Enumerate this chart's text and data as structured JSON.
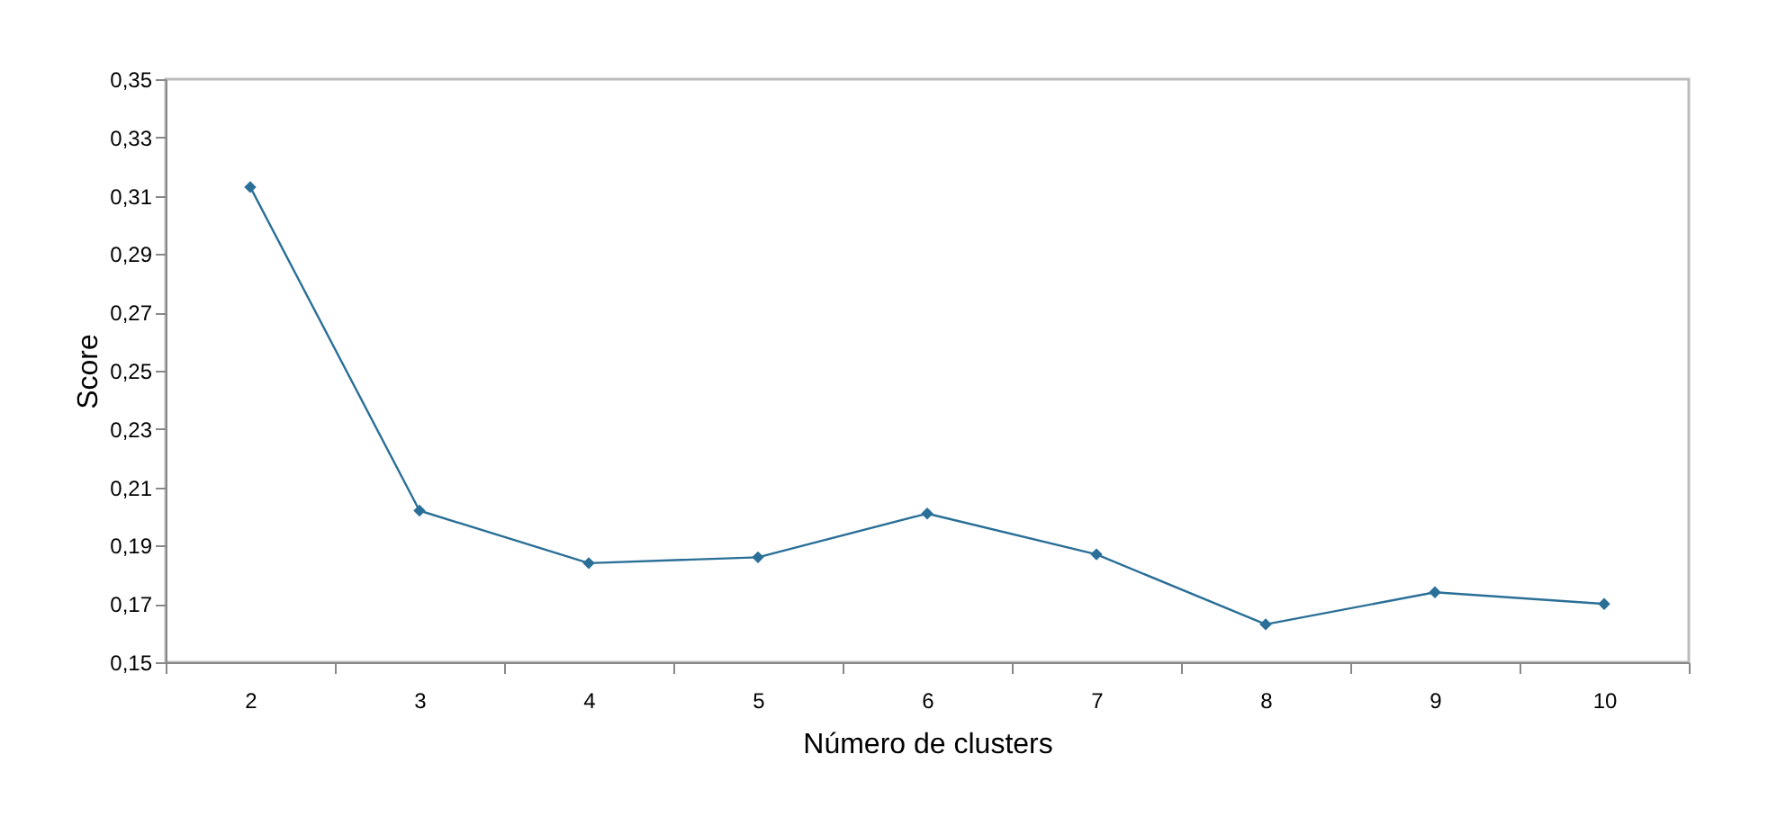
{
  "chart_data": {
    "type": "line",
    "xlabel": "Número de clusters",
    "ylabel": "Score",
    "categories": [
      "2",
      "3",
      "4",
      "5",
      "6",
      "7",
      "8",
      "9",
      "10"
    ],
    "series": [
      {
        "color": "#2a6f97",
        "values": [
          0.313,
          0.202,
          0.184,
          0.186,
          0.201,
          0.187,
          0.163,
          0.174,
          0.17
        ]
      }
    ],
    "ylim": [
      0.15,
      0.35
    ],
    "yticks": [
      {
        "value": 0.15,
        "label": "0,15"
      },
      {
        "value": 0.17,
        "label": "0,17"
      },
      {
        "value": 0.19,
        "label": "0,19"
      },
      {
        "value": 0.21,
        "label": "0,21"
      },
      {
        "value": 0.23,
        "label": "0,23"
      },
      {
        "value": 0.25,
        "label": "0,25"
      },
      {
        "value": 0.27,
        "label": "0,27"
      },
      {
        "value": 0.29,
        "label": "0,29"
      },
      {
        "value": 0.31,
        "label": "0,31"
      },
      {
        "value": 0.33,
        "label": "0,33"
      },
      {
        "value": 0.35,
        "label": "0,35"
      }
    ],
    "grid": false,
    "marker": "diamond",
    "line_style": "solid"
  }
}
